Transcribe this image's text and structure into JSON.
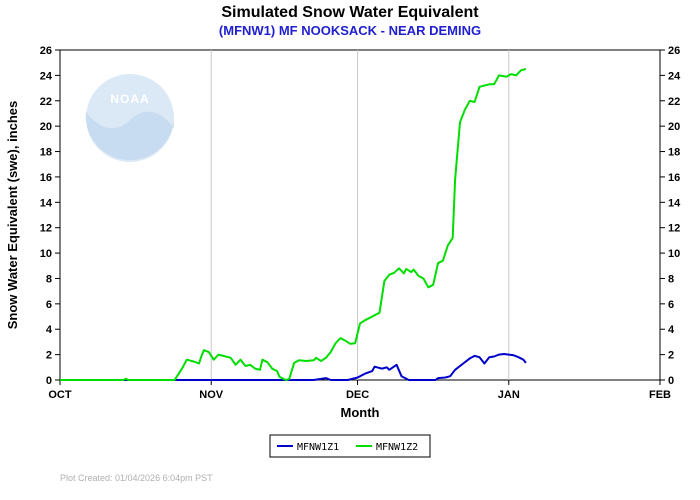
{
  "chart_data": {
    "type": "line",
    "title": "Simulated Snow Water Equivalent",
    "subtitle": "(MFNW1) MF NOOKSACK - NEAR DEMING",
    "xlabel": "Month",
    "ylabel": "Snow Water Equivalent (swe),  inches",
    "x_ticks": [
      {
        "label": "OCT",
        "day": 0
      },
      {
        "label": "NOV",
        "day": 31
      },
      {
        "label": "DEC",
        "day": 61
      },
      {
        "label": "JAN",
        "day": 92
      },
      {
        "label": "FEB",
        "day": 123
      }
    ],
    "xlim": [
      "OCT",
      "FEB"
    ],
    "ylim": [
      0,
      26
    ],
    "y_ticks": [
      "0",
      "2",
      "4",
      "6",
      "8",
      "10",
      "12",
      "14",
      "16",
      "18",
      "20",
      "22",
      "24",
      "26"
    ],
    "grid": "vertical at month boundaries",
    "legend_position": "bottom-center",
    "series": [
      {
        "name": "MFNW1Z1",
        "color": "#0000cc",
        "points": [
          [
            0,
            0
          ],
          [
            52,
            0
          ],
          [
            54.5,
            0.15
          ],
          [
            55.5,
            0
          ],
          [
            59,
            0
          ],
          [
            61,
            0.2
          ],
          [
            62.5,
            0.5
          ],
          [
            64,
            0.7
          ],
          [
            64.5,
            1.05
          ],
          [
            66,
            0.9
          ],
          [
            67,
            1.0
          ],
          [
            67.5,
            0.8
          ],
          [
            69,
            1.2
          ],
          [
            70,
            0.3
          ],
          [
            71.5,
            0
          ],
          [
            77,
            0
          ],
          [
            77.5,
            0.15
          ],
          [
            79,
            0.2
          ],
          [
            80,
            0.3
          ],
          [
            81,
            0.8
          ],
          [
            82,
            1.1
          ],
          [
            84,
            1.7
          ],
          [
            85,
            1.9
          ],
          [
            86,
            1.8
          ],
          [
            87,
            1.3
          ],
          [
            88,
            1.8
          ],
          [
            89,
            1.85
          ],
          [
            90,
            2.0
          ],
          [
            91,
            2.05
          ],
          [
            92,
            2.0
          ],
          [
            93,
            1.95
          ],
          [
            94,
            1.8
          ],
          [
            95,
            1.6
          ],
          [
            95.5,
            1.35
          ]
        ]
      },
      {
        "name": "MFNW1Z2",
        "color": "#00dd00",
        "points": [
          [
            0,
            0
          ],
          [
            13,
            0
          ],
          [
            13.5,
            0.1
          ],
          [
            14,
            0
          ],
          [
            23.5,
            0
          ],
          [
            25,
            0.9
          ],
          [
            26,
            1.6
          ],
          [
            27.5,
            1.45
          ],
          [
            28.5,
            1.3
          ],
          [
            29,
            1.9
          ],
          [
            29.5,
            2.35
          ],
          [
            30.5,
            2.2
          ],
          [
            31.5,
            1.6
          ],
          [
            32.5,
            2.0
          ],
          [
            33.5,
            1.9
          ],
          [
            35,
            1.75
          ],
          [
            36,
            1.2
          ],
          [
            37,
            1.6
          ],
          [
            38,
            1.1
          ],
          [
            39,
            1.2
          ],
          [
            40,
            0.9
          ],
          [
            41,
            0.8
          ],
          [
            41.5,
            1.6
          ],
          [
            42.5,
            1.4
          ],
          [
            43.5,
            0.9
          ],
          [
            44.5,
            0.7
          ],
          [
            45,
            0.25
          ],
          [
            46,
            0.05
          ],
          [
            46.5,
            0
          ],
          [
            47,
            0.1
          ],
          [
            48,
            1.35
          ],
          [
            49,
            1.55
          ],
          [
            50.5,
            1.5
          ],
          [
            52,
            1.55
          ],
          [
            52.5,
            1.75
          ],
          [
            53.5,
            1.5
          ],
          [
            54.5,
            1.75
          ],
          [
            55.5,
            2.2
          ],
          [
            56.5,
            2.9
          ],
          [
            57.5,
            3.3
          ],
          [
            58.5,
            3.1
          ],
          [
            59.5,
            2.85
          ],
          [
            60.5,
            2.9
          ],
          [
            61.5,
            4.45
          ],
          [
            62.5,
            4.7
          ],
          [
            63.5,
            4.9
          ],
          [
            64.5,
            5.1
          ],
          [
            65.5,
            5.3
          ],
          [
            66.5,
            7.8
          ],
          [
            67.5,
            8.3
          ],
          [
            68.5,
            8.45
          ],
          [
            69.5,
            8.8
          ],
          [
            70.5,
            8.4
          ],
          [
            71,
            8.75
          ],
          [
            72,
            8.5
          ],
          [
            72.5,
            8.7
          ],
          [
            73.5,
            8.2
          ],
          [
            74.5,
            8.0
          ],
          [
            75.5,
            7.3
          ],
          [
            76.5,
            7.5
          ],
          [
            77.5,
            9.2
          ],
          [
            78.5,
            9.4
          ],
          [
            79.5,
            10.6
          ],
          [
            80.5,
            11.2
          ],
          [
            81,
            15.8
          ],
          [
            82,
            20.3
          ],
          [
            83,
            21.3
          ],
          [
            84,
            22.0
          ],
          [
            85,
            21.9
          ],
          [
            86,
            23.1
          ],
          [
            88,
            23.3
          ],
          [
            89,
            23.3
          ],
          [
            90,
            24.0
          ],
          [
            91.5,
            23.9
          ],
          [
            92.5,
            24.1
          ],
          [
            93.5,
            24.0
          ],
          [
            94.5,
            24.4
          ],
          [
            95.5,
            24.5
          ]
        ]
      }
    ]
  },
  "logo": {
    "text": "NOAA",
    "color_light": "#dbe9f7",
    "color_mid": "#c7dcf0"
  },
  "footer": {
    "created": "Plot Created: 01/04/2026 6:04pm PST"
  }
}
